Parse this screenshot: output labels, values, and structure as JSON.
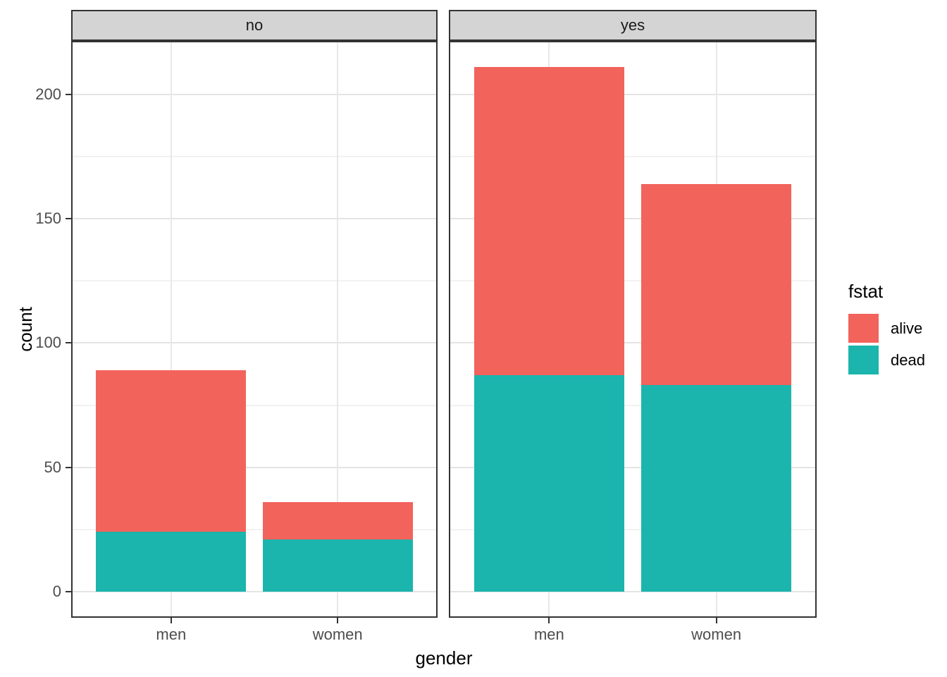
{
  "chart_data": {
    "type": "bar",
    "stacked": true,
    "title": "",
    "xlabel": "gender",
    "ylabel": "count",
    "facet_labels": [
      "no",
      "yes"
    ],
    "categories": [
      "men",
      "women"
    ],
    "stack_order_bottom_to_top": [
      "dead",
      "alive"
    ],
    "facets": [
      {
        "label": "no",
        "bars": [
          {
            "category": "men",
            "segments": {
              "dead": 24,
              "alive": 65
            },
            "total": 89
          },
          {
            "category": "women",
            "segments": {
              "dead": 21,
              "alive": 15
            },
            "total": 36
          }
        ]
      },
      {
        "label": "yes",
        "bars": [
          {
            "category": "men",
            "segments": {
              "dead": 87,
              "alive": 124
            },
            "total": 211
          },
          {
            "category": "women",
            "segments": {
              "dead": 83,
              "alive": 81
            },
            "total": 164
          }
        ]
      }
    ],
    "series": [
      {
        "name": "alive",
        "color": "#F2635C",
        "values_by_facet": [
          [
            65,
            15
          ],
          [
            124,
            81
          ]
        ]
      },
      {
        "name": "dead",
        "color": "#1BB5AD",
        "values_by_facet": [
          [
            24,
            21
          ],
          [
            87,
            83
          ]
        ]
      }
    ],
    "y_ticks": [
      0,
      50,
      100,
      150,
      200
    ],
    "y_minor_gridlines": [
      25,
      75,
      125,
      175
    ],
    "ylim": [
      -10.5,
      221.5
    ],
    "grid": true,
    "legend": {
      "title": "fstat",
      "position": "right",
      "entries": [
        {
          "label": "alive",
          "color": "#F2635C"
        },
        {
          "label": "dead",
          "color": "#1BB5AD"
        }
      ]
    },
    "theme": {
      "strip_fill": "#D4D4D4",
      "panel_border": "#333333",
      "major_grid": "#e4e4e4",
      "minor_grid": "#f2f2f2",
      "axis_text": "#4d4d4d"
    }
  }
}
